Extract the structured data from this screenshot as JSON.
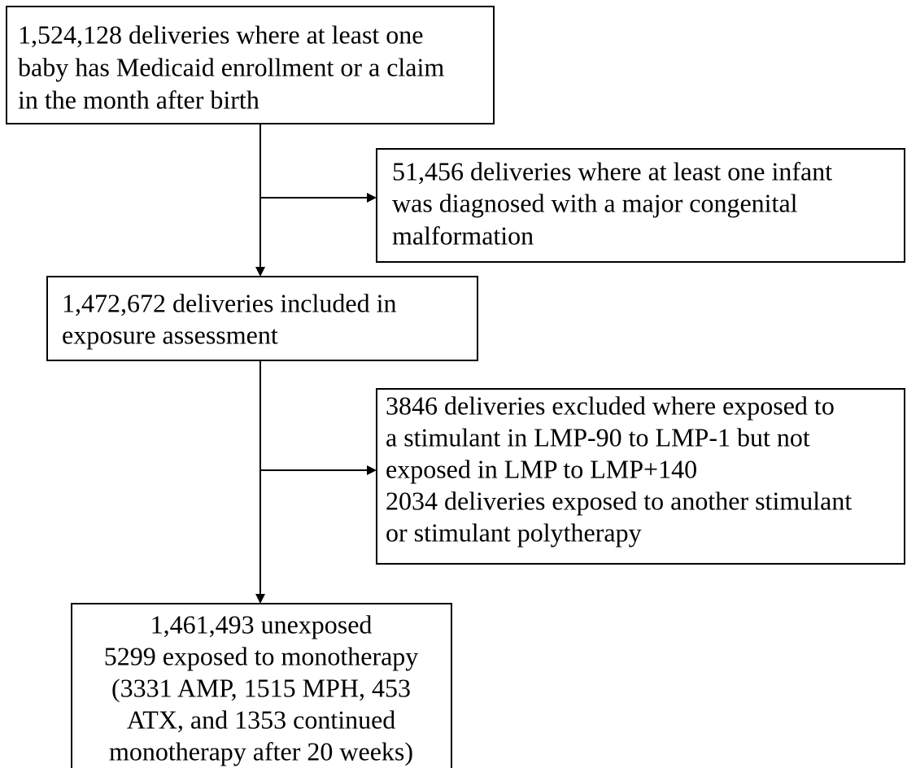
{
  "nodes": [
    {
      "lines": [
        "1,524,128 deliveries where at least one",
        "baby has Medicaid enrollment or a claim",
        "in the month after birth"
      ]
    },
    {
      "lines": [
        "51,456 deliveries where at least one infant",
        "was diagnosed with a major congenital",
        "malformation"
      ]
    },
    {
      "lines": [
        "1,472,672 deliveries included in",
        "exposure assessment"
      ]
    },
    {
      "lines": [
        "3846 deliveries excluded where exposed to",
        "a stimulant in LMP-90 to LMP-1 but not",
        "exposed in LMP to LMP+140",
        "2034 deliveries exposed to another stimulant",
        "or stimulant polytherapy"
      ]
    },
    {
      "lines": [
        "1,461,493 unexposed",
        "5299 exposed to monotherapy",
        "(3331 AMP, 1515 MPH, 453",
        "ATX, and 1353 continued",
        "monotherapy after 20 weeks)"
      ]
    }
  ]
}
